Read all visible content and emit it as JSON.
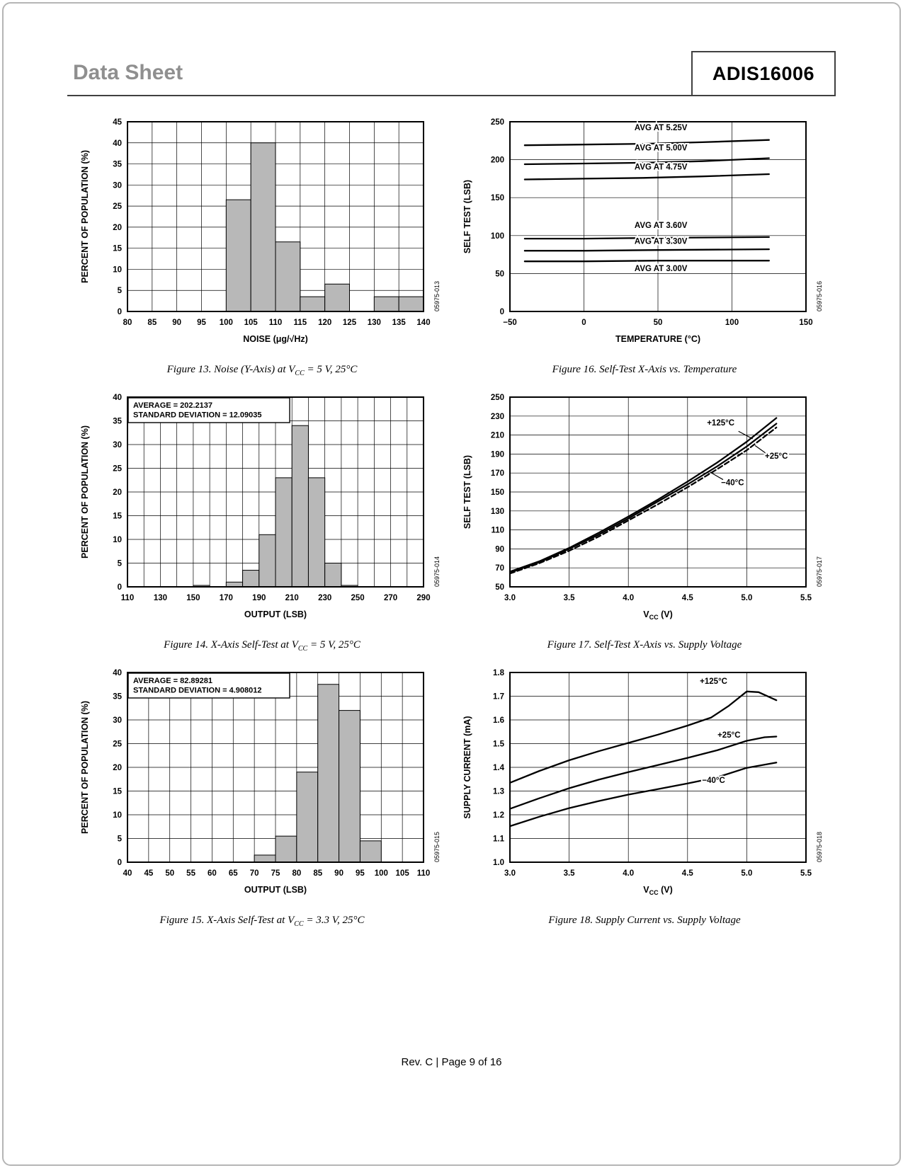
{
  "page": {
    "header_left": "Data Sheet",
    "header_right": "ADIS16006",
    "footer": "Rev. C | Page 9 of 16"
  },
  "chart_data": [
    {
      "name": "figure-13",
      "type": "bar",
      "code": "05975-013",
      "caption": {
        "pre": "Figure 13. Noise (Y-Axis) at V",
        "sub": "CC",
        "post": " = 5 V, 25°C"
      },
      "xlabel": {
        "pre": "NOISE (μg/√Hz)",
        "sub": "",
        "post": ""
      },
      "ylabel": "PERCENT OF POPULATION (%)",
      "xlim": [
        80,
        140
      ],
      "ylim": [
        0,
        45
      ],
      "xticks": {
        "values": [
          80,
          85,
          90,
          95,
          100,
          105,
          110,
          115,
          120,
          125,
          130,
          135,
          140
        ],
        "labels": [
          "80",
          "85",
          "90",
          "95",
          "100",
          "105",
          "110",
          "115",
          "120",
          "125",
          "130",
          "135",
          "140"
        ]
      },
      "yticks": {
        "values": [
          0,
          5,
          10,
          15,
          20,
          25,
          30,
          35,
          40,
          45
        ],
        "labels": [
          "0",
          "5",
          "10",
          "15",
          "20",
          "25",
          "30",
          "35",
          "40",
          "45"
        ]
      },
      "bars": {
        "bin_width": 5,
        "data": [
          [
            100,
            26.5
          ],
          [
            105,
            40
          ],
          [
            110,
            16.5
          ],
          [
            115,
            3.5
          ],
          [
            120,
            6.5
          ],
          [
            130,
            3.5
          ],
          [
            135,
            3.5
          ]
        ]
      }
    },
    {
      "name": "figure-16",
      "type": "line",
      "code": "05975-016",
      "caption": {
        "pre": "Figure 16. Self-Test X-Axis vs. Temperature",
        "sub": "",
        "post": ""
      },
      "xlabel": {
        "pre": "TEMPERATURE (°C)",
        "sub": "",
        "post": ""
      },
      "ylabel": "SELF TEST (LSB)",
      "xlim": [
        -50,
        150
      ],
      "ylim": [
        0,
        250
      ],
      "xticks": {
        "values": [
          -50,
          0,
          50,
          100,
          150
        ],
        "labels": [
          "−50",
          "0",
          "50",
          "100",
          "150"
        ]
      },
      "yticks": {
        "values": [
          0,
          50,
          100,
          150,
          200,
          250
        ],
        "labels": [
          "0",
          "50",
          "100",
          "150",
          "200",
          "250"
        ]
      },
      "series": [
        {
          "name": "AVG AT 5.25V",
          "points": [
            [
              -40,
              219
            ],
            [
              0,
              220
            ],
            [
              40,
              221
            ],
            [
              80,
              223
            ],
            [
              125,
              226
            ]
          ],
          "label_at": [
            52,
            239
          ]
        },
        {
          "name": "AVG AT 5.00V",
          "points": [
            [
              -40,
              194
            ],
            [
              0,
              195
            ],
            [
              40,
              196
            ],
            [
              80,
              198
            ],
            [
              125,
              202
            ]
          ],
          "label_at": [
            52,
            212
          ]
        },
        {
          "name": "AVG AT 4.75V",
          "points": [
            [
              -40,
              174
            ],
            [
              0,
              175
            ],
            [
              40,
              176
            ],
            [
              80,
              178
            ],
            [
              125,
              181
            ]
          ],
          "label_at": [
            52,
            187
          ]
        },
        {
          "name": "AVG AT 3.60V",
          "points": [
            [
              -40,
              96
            ],
            [
              0,
              96
            ],
            [
              50,
              97
            ],
            [
              125,
              98
            ]
          ],
          "label_at": [
            52,
            110
          ]
        },
        {
          "name": "AVG AT 3.30V",
          "points": [
            [
              -40,
              80
            ],
            [
              0,
              80
            ],
            [
              50,
              81
            ],
            [
              125,
              82
            ]
          ],
          "label_at": [
            52,
            89
          ]
        },
        {
          "name": "AVG AT 3.00V",
          "points": [
            [
              -40,
              66
            ],
            [
              0,
              66
            ],
            [
              50,
              67
            ],
            [
              125,
              67
            ]
          ],
          "label_at": [
            52,
            53
          ]
        }
      ]
    },
    {
      "name": "figure-14",
      "type": "bar",
      "code": "05975-014",
      "caption": {
        "pre": "Figure 14. X-Axis Self-Test at V",
        "sub": "CC",
        "post": " = 5 V, 25°C"
      },
      "xlabel": {
        "pre": "OUTPUT (LSB)",
        "sub": "",
        "post": ""
      },
      "ylabel": "PERCENT OF POPULATION (%)",
      "xlim": [
        110,
        290
      ],
      "ylim": [
        0,
        40
      ],
      "xgrid": [
        110,
        120,
        130,
        140,
        150,
        160,
        170,
        180,
        190,
        200,
        210,
        220,
        230,
        240,
        250,
        260,
        270,
        280,
        290
      ],
      "xticks": {
        "values": [
          110,
          130,
          150,
          170,
          190,
          210,
          230,
          250,
          270,
          290
        ],
        "labels": [
          "110",
          "130",
          "150",
          "170",
          "190",
          "210",
          "230",
          "250",
          "270",
          "290"
        ]
      },
      "yticks": {
        "values": [
          0,
          5,
          10,
          15,
          20,
          25,
          30,
          35,
          40
        ],
        "labels": [
          "0",
          "5",
          "10",
          "15",
          "20",
          "25",
          "30",
          "35",
          "40"
        ]
      },
      "annotation": [
        "AVERAGE = 202.2137",
        "STANDARD DEVIATION = 12.09035"
      ],
      "bars": {
        "bin_width": 10,
        "data": [
          [
            150,
            0.3
          ],
          [
            170,
            1
          ],
          [
            180,
            3.5
          ],
          [
            190,
            11
          ],
          [
            200,
            23
          ],
          [
            210,
            34
          ],
          [
            220,
            23
          ],
          [
            230,
            5
          ],
          [
            240,
            0.3
          ]
        ]
      }
    },
    {
      "name": "figure-17",
      "type": "line",
      "code": "05975-017",
      "caption": {
        "pre": "Figure 17. Self-Test X-Axis vs. Supply Voltage",
        "sub": "",
        "post": ""
      },
      "xlabel": {
        "pre": "V",
        "sub": "CC",
        "post": " (V)"
      },
      "ylabel": "SELF TEST (LSB)",
      "xlim": [
        3.0,
        5.5
      ],
      "ylim": [
        50,
        250
      ],
      "xticks": {
        "values": [
          3.0,
          3.5,
          4.0,
          4.5,
          5.0,
          5.5
        ],
        "labels": [
          "3.0",
          "3.5",
          "4.0",
          "4.5",
          "5.0",
          "5.5"
        ]
      },
      "yticks": {
        "values": [
          50,
          70,
          90,
          110,
          130,
          150,
          170,
          190,
          210,
          230,
          250
        ],
        "labels": [
          "50",
          "70",
          "90",
          "110",
          "130",
          "150",
          "170",
          "190",
          "210",
          "230",
          "250"
        ]
      },
      "series": [
        {
          "name": "+125°C",
          "points": [
            [
              3.0,
              66
            ],
            [
              3.25,
              77
            ],
            [
              3.5,
              91
            ],
            [
              3.75,
              107
            ],
            [
              4.0,
              124
            ],
            [
              4.25,
              142
            ],
            [
              4.5,
              161
            ],
            [
              4.75,
              181
            ],
            [
              5.0,
              203
            ],
            [
              5.25,
              228
            ]
          ],
          "label_at": [
            4.78,
            220
          ],
          "leader": [
            [
              4.93,
              214
            ],
            [
              5.05,
              206
            ]
          ]
        },
        {
          "name": "+25°C",
          "points": [
            [
              3.0,
              65
            ],
            [
              3.25,
              76
            ],
            [
              3.5,
              90
            ],
            [
              3.75,
              105
            ],
            [
              4.0,
              122
            ],
            [
              4.25,
              140
            ],
            [
              4.5,
              158
            ],
            [
              4.75,
              177
            ],
            [
              5.0,
              198
            ],
            [
              5.25,
              222
            ]
          ],
          "label_at": [
            5.25,
            185
          ],
          "leader": [
            [
              5.17,
              190
            ],
            [
              5.07,
              199
            ]
          ]
        },
        {
          "name": "−40°C",
          "dash": true,
          "points": [
            [
              3.0,
              64
            ],
            [
              3.25,
              75
            ],
            [
              3.5,
              88
            ],
            [
              3.75,
              103
            ],
            [
              4.0,
              120
            ],
            [
              4.25,
              137
            ],
            [
              4.5,
              155
            ],
            [
              4.75,
              174
            ],
            [
              5.0,
              194
            ],
            [
              5.25,
              218
            ]
          ],
          "label_at": [
            4.88,
            157
          ],
          "leader": [
            [
              4.8,
              163
            ],
            [
              4.69,
              171
            ]
          ]
        }
      ]
    },
    {
      "name": "figure-15",
      "type": "bar",
      "code": "05975-015",
      "caption": {
        "pre": "Figure 15. X-Axis Self-Test at V",
        "sub": "CC",
        "post": " = 3.3 V, 25°C"
      },
      "xlabel": {
        "pre": "OUTPUT (LSB)",
        "sub": "",
        "post": ""
      },
      "ylabel": "PERCENT OF POPULATION (%)",
      "xlim": [
        40,
        110
      ],
      "ylim": [
        0,
        40
      ],
      "xticks": {
        "values": [
          40,
          45,
          50,
          55,
          60,
          65,
          70,
          75,
          80,
          85,
          90,
          95,
          100,
          105,
          110
        ],
        "labels": [
          "40",
          "45",
          "50",
          "55",
          "60",
          "65",
          "70",
          "75",
          "80",
          "85",
          "90",
          "95",
          "100",
          "105",
          "110"
        ]
      },
      "yticks": {
        "values": [
          0,
          5,
          10,
          15,
          20,
          25,
          30,
          35,
          40
        ],
        "labels": [
          "0",
          "5",
          "10",
          "15",
          "20",
          "25",
          "30",
          "35",
          "40"
        ]
      },
      "annotation": [
        "AVERAGE = 82.89281",
        "STANDARD DEVIATION = 4.908012"
      ],
      "bars": {
        "bin_width": 5,
        "data": [
          [
            70,
            1.5
          ],
          [
            75,
            5.5
          ],
          [
            80,
            19
          ],
          [
            85,
            37.5
          ],
          [
            90,
            32
          ],
          [
            95,
            4.5
          ]
        ]
      }
    },
    {
      "name": "figure-18",
      "type": "line",
      "code": "05975-018",
      "caption": {
        "pre": "Figure 18. Supply Current vs. Supply Voltage",
        "sub": "",
        "post": ""
      },
      "xlabel": {
        "pre": "V",
        "sub": "CC",
        "post": " (V)"
      },
      "ylabel": "SUPPLY CURRENT (mA)",
      "xlim": [
        3.0,
        5.5
      ],
      "ylim": [
        1.0,
        1.8
      ],
      "xticks": {
        "values": [
          3.0,
          3.5,
          4.0,
          4.5,
          5.0,
          5.5
        ],
        "labels": [
          "3.0",
          "3.5",
          "4.0",
          "4.5",
          "5.0",
          "5.5"
        ]
      },
      "yticks": {
        "values": [
          1.0,
          1.1,
          1.2,
          1.3,
          1.4,
          1.5,
          1.6,
          1.7,
          1.8
        ],
        "labels": [
          "1.0",
          "1.1",
          "1.2",
          "1.3",
          "1.4",
          "1.5",
          "1.6",
          "1.7",
          "1.8"
        ]
      },
      "series": [
        {
          "name": "+125°C",
          "points": [
            [
              3.0,
              1.335
            ],
            [
              3.25,
              1.385
            ],
            [
              3.5,
              1.43
            ],
            [
              3.75,
              1.468
            ],
            [
              4.0,
              1.503
            ],
            [
              4.25,
              1.538
            ],
            [
              4.5,
              1.576
            ],
            [
              4.7,
              1.61
            ],
            [
              4.85,
              1.66
            ],
            [
              5.0,
              1.72
            ],
            [
              5.1,
              1.717
            ],
            [
              5.25,
              1.683
            ]
          ],
          "label_at": [
            4.72,
            1.752
          ]
        },
        {
          "name": "+25°C",
          "points": [
            [
              3.0,
              1.225
            ],
            [
              3.25,
              1.27
            ],
            [
              3.5,
              1.312
            ],
            [
              3.75,
              1.348
            ],
            [
              4.0,
              1.38
            ],
            [
              4.25,
              1.41
            ],
            [
              4.5,
              1.44
            ],
            [
              4.75,
              1.472
            ],
            [
              5.0,
              1.512
            ],
            [
              5.15,
              1.527
            ],
            [
              5.25,
              1.53
            ]
          ],
          "label_at": [
            4.85,
            1.525
          ]
        },
        {
          "name": "−40°C",
          "points": [
            [
              3.0,
              1.152
            ],
            [
              3.25,
              1.192
            ],
            [
              3.5,
              1.228
            ],
            [
              3.75,
              1.258
            ],
            [
              4.0,
              1.285
            ],
            [
              4.25,
              1.308
            ],
            [
              4.5,
              1.332
            ],
            [
              4.75,
              1.358
            ],
            [
              5.0,
              1.398
            ],
            [
              5.25,
              1.42
            ]
          ],
          "label_at": [
            4.72,
            1.335
          ]
        }
      ]
    }
  ]
}
